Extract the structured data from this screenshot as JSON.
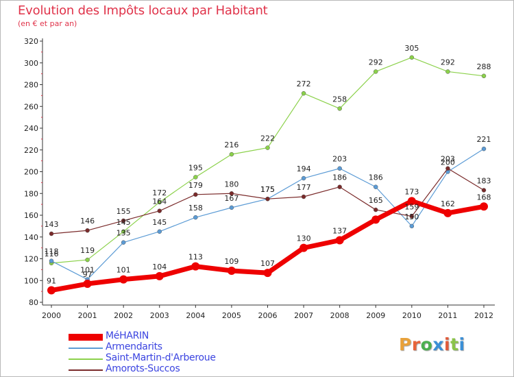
{
  "title": "Evolution des Impôts locaux par Habitant",
  "subtitle": "(en € et par an)",
  "logo": {
    "text": "Proxiti",
    "colors": [
      "#e8a13a",
      "#e8643a",
      "#4caf50",
      "#3b8fd6",
      "#e05a3a",
      "#8bc34a",
      "#3b8fd6"
    ]
  },
  "chart_data": {
    "type": "line",
    "x": [
      "2000",
      "2001",
      "2002",
      "2003",
      "2004",
      "2005",
      "2006",
      "2007",
      "2008",
      "2009",
      "2010",
      "2011",
      "2012"
    ],
    "ylim": [
      80,
      320
    ],
    "yticks": [
      80,
      100,
      120,
      140,
      160,
      180,
      200,
      220,
      240,
      260,
      280,
      300,
      320
    ],
    "grid": false,
    "legend_position": "bottom-left",
    "series": [
      {
        "name": "MéHARIN",
        "color": "#ee0000",
        "values": [
          91,
          97,
          101,
          104,
          113,
          109,
          107,
          130,
          137,
          156,
          173,
          162,
          168
        ],
        "labels": [
          "91",
          "97",
          "101",
          "104",
          "113",
          "109",
          "107",
          "130",
          "137",
          "",
          "173",
          "162",
          "168"
        ]
      },
      {
        "name": "Armendarits",
        "color": "#5b9bd5",
        "values": [
          118,
          101,
          135,
          145,
          158,
          167,
          175,
          194,
          203,
          186,
          150,
          200,
          221
        ],
        "labels": [
          "118",
          "101",
          "135",
          "145",
          "158",
          "167",
          "175",
          "194",
          "203",
          "186",
          "150",
          "200",
          "221"
        ]
      },
      {
        "name": "Saint-Martin-d'Arberoue",
        "color": "#8bd14a",
        "values": [
          116,
          119,
          145,
          172,
          195,
          216,
          222,
          272,
          258,
          292,
          305,
          292,
          288
        ],
        "labels": [
          "116",
          "119",
          "145",
          "172",
          "195",
          "216",
          "222",
          "272",
          "258",
          "292",
          "305",
          "292",
          "288"
        ]
      },
      {
        "name": "Amorots-Succos",
        "color": "#7a2a2a",
        "values": [
          143,
          146,
          155,
          164,
          179,
          180,
          175,
          177,
          186,
          165,
          159,
          203,
          183
        ],
        "labels": [
          "143",
          "146",
          "155",
          "164",
          "179",
          "180",
          "175",
          "177",
          "186",
          "165",
          "159",
          "203",
          "183"
        ]
      }
    ]
  }
}
